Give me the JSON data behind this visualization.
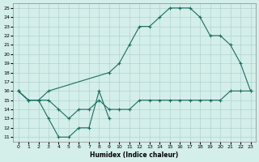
{
  "bg_color": "#d4eeea",
  "grid_color": "#a8cec8",
  "line_color": "#1a6e60",
  "xlabel": "Humidex (Indice chaleur)",
  "xlim": [
    -0.5,
    23.5
  ],
  "ylim": [
    10.5,
    25.5
  ],
  "xticks": [
    0,
    1,
    2,
    3,
    4,
    5,
    6,
    7,
    8,
    9,
    10,
    11,
    12,
    13,
    14,
    15,
    16,
    17,
    18,
    19,
    20,
    21,
    22,
    23
  ],
  "yticks": [
    11,
    12,
    13,
    14,
    15,
    16,
    17,
    18,
    19,
    20,
    21,
    22,
    23,
    24,
    25
  ],
  "curves": [
    {
      "x": [
        0,
        1,
        2,
        3,
        4,
        5,
        6,
        7,
        8,
        9
      ],
      "y": [
        16,
        15,
        15,
        13,
        11,
        11,
        12,
        12,
        16,
        13
      ]
    },
    {
      "x": [
        0,
        1,
        2,
        3,
        4,
        5,
        6,
        7,
        8,
        9,
        10,
        11,
        12,
        13,
        14,
        15,
        16,
        17,
        18,
        19,
        20,
        21,
        22,
        23
      ],
      "y": [
        16,
        15,
        15,
        15,
        14,
        13,
        14,
        14,
        15,
        14,
        14,
        14,
        15,
        15,
        15,
        15,
        15,
        15,
        15,
        15,
        15,
        16,
        16,
        16
      ]
    },
    {
      "x": [
        0,
        1,
        2,
        3,
        9,
        10,
        11,
        12,
        13,
        14,
        15,
        16,
        17,
        18,
        19,
        20,
        21,
        22,
        23
      ],
      "y": [
        16,
        15,
        15,
        16,
        18,
        19,
        21,
        23,
        23,
        24,
        25,
        25,
        25,
        24,
        22,
        22,
        21,
        19,
        16
      ]
    }
  ]
}
